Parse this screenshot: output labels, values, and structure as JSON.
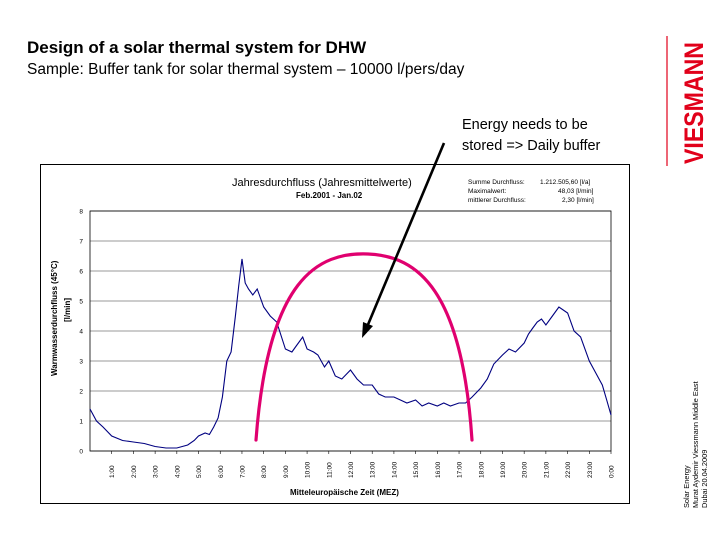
{
  "slide": {
    "title": "Design of a solar thermal system for DHW",
    "subtitle": "Sample: Buffer tank for solar thermal system – 10000 l/pers/day",
    "callout_line1": "Energy needs  to be",
    "callout_line2": "stored => Daily  buffer",
    "logo_text": "VIESMANN",
    "side_line1": "Solar Energy",
    "side_line2": "Murat Aydemir  Viessmann Middle East",
    "side_line3": "Dubai 20.04.2009",
    "brand_color": "#e1001a",
    "arc_color": "#e0006f",
    "arrow_color": "#000000"
  },
  "chart_data": {
    "type": "line",
    "title": "Jahresdurchfluss (Jahresmittelwerte)",
    "period": "Feb.2001 - Jan.02",
    "stats": [
      {
        "label": "Summe Durchfluss:",
        "value": "1.212.505,60 [l/a]"
      },
      {
        "label": "Maximalwert:",
        "value": "48,03 [l/min]"
      },
      {
        "label": "mittlerer Durchfluss:",
        "value": "2,30 [l/min]"
      }
    ],
    "xlabel": "Mitteleuropäische Zeit (MEZ)",
    "ylabel_line1": "Warmwasserdurchfluss (45°C)",
    "ylabel_line2": "[l/min]",
    "xlim": [
      0,
      24
    ],
    "ylim": [
      0,
      8
    ],
    "yticks": [
      "0",
      "1",
      "2",
      "3",
      "4",
      "5",
      "6",
      "7",
      "8"
    ],
    "xticks": [
      "1:00",
      "2:00",
      "3:00",
      "4:00",
      "5:00",
      "6:00",
      "7:00",
      "8:00",
      "9:00",
      "10:00",
      "11:00",
      "12:00",
      "13:00",
      "14:00",
      "15:00",
      "16:00",
      "17:00",
      "18:00",
      "19:00",
      "20:00",
      "21:00",
      "22:00",
      "23:00",
      "0:00"
    ],
    "grid": true,
    "line_color": "#000080",
    "series": [
      {
        "x": [
          0,
          0.3,
          0.6,
          1.0,
          1.5,
          2.0,
          2.5,
          3.0,
          3.5,
          4.0,
          4.5,
          4.8,
          5.0,
          5.3,
          5.5,
          5.7,
          5.9,
          6.1,
          6.3,
          6.5,
          6.7,
          6.85,
          7.0,
          7.15,
          7.3,
          7.5,
          7.7,
          8.0,
          8.3,
          8.6,
          9.0,
          9.3,
          9.5,
          9.8,
          10.0,
          10.3,
          10.5,
          10.8,
          11.0,
          11.3,
          11.6,
          12.0,
          12.3,
          12.6,
          13.0,
          13.3,
          13.6,
          14.0,
          14.3,
          14.6,
          15.0,
          15.3,
          15.6,
          16.0,
          16.3,
          16.6,
          17.0,
          17.3,
          17.6,
          18.0,
          18.3,
          18.6,
          19.0,
          19.3,
          19.6,
          20.0,
          20.2,
          20.4,
          20.6,
          20.8,
          21.0,
          21.3,
          21.6,
          22.0,
          22.3,
          22.6,
          23.0,
          23.3,
          23.6,
          23.8,
          24.0
        ],
        "y": [
          1.4,
          1.0,
          0.8,
          0.5,
          0.35,
          0.3,
          0.25,
          0.15,
          0.1,
          0.1,
          0.2,
          0.35,
          0.5,
          0.6,
          0.55,
          0.8,
          1.1,
          1.8,
          3.0,
          3.3,
          4.5,
          5.5,
          6.4,
          5.6,
          5.4,
          5.2,
          5.4,
          4.8,
          4.5,
          4.3,
          3.4,
          3.3,
          3.5,
          3.8,
          3.4,
          3.3,
          3.2,
          2.8,
          3.0,
          2.5,
          2.4,
          2.7,
          2.4,
          2.2,
          2.2,
          1.9,
          1.8,
          1.8,
          1.7,
          1.6,
          1.7,
          1.5,
          1.6,
          1.5,
          1.6,
          1.5,
          1.6,
          1.6,
          1.8,
          2.1,
          2.4,
          2.9,
          3.2,
          3.4,
          3.3,
          3.6,
          3.9,
          4.1,
          4.3,
          4.4,
          4.2,
          4.5,
          4.8,
          4.6,
          4.0,
          3.8,
          3.0,
          2.6,
          2.2,
          1.7,
          1.2
        ]
      }
    ]
  }
}
